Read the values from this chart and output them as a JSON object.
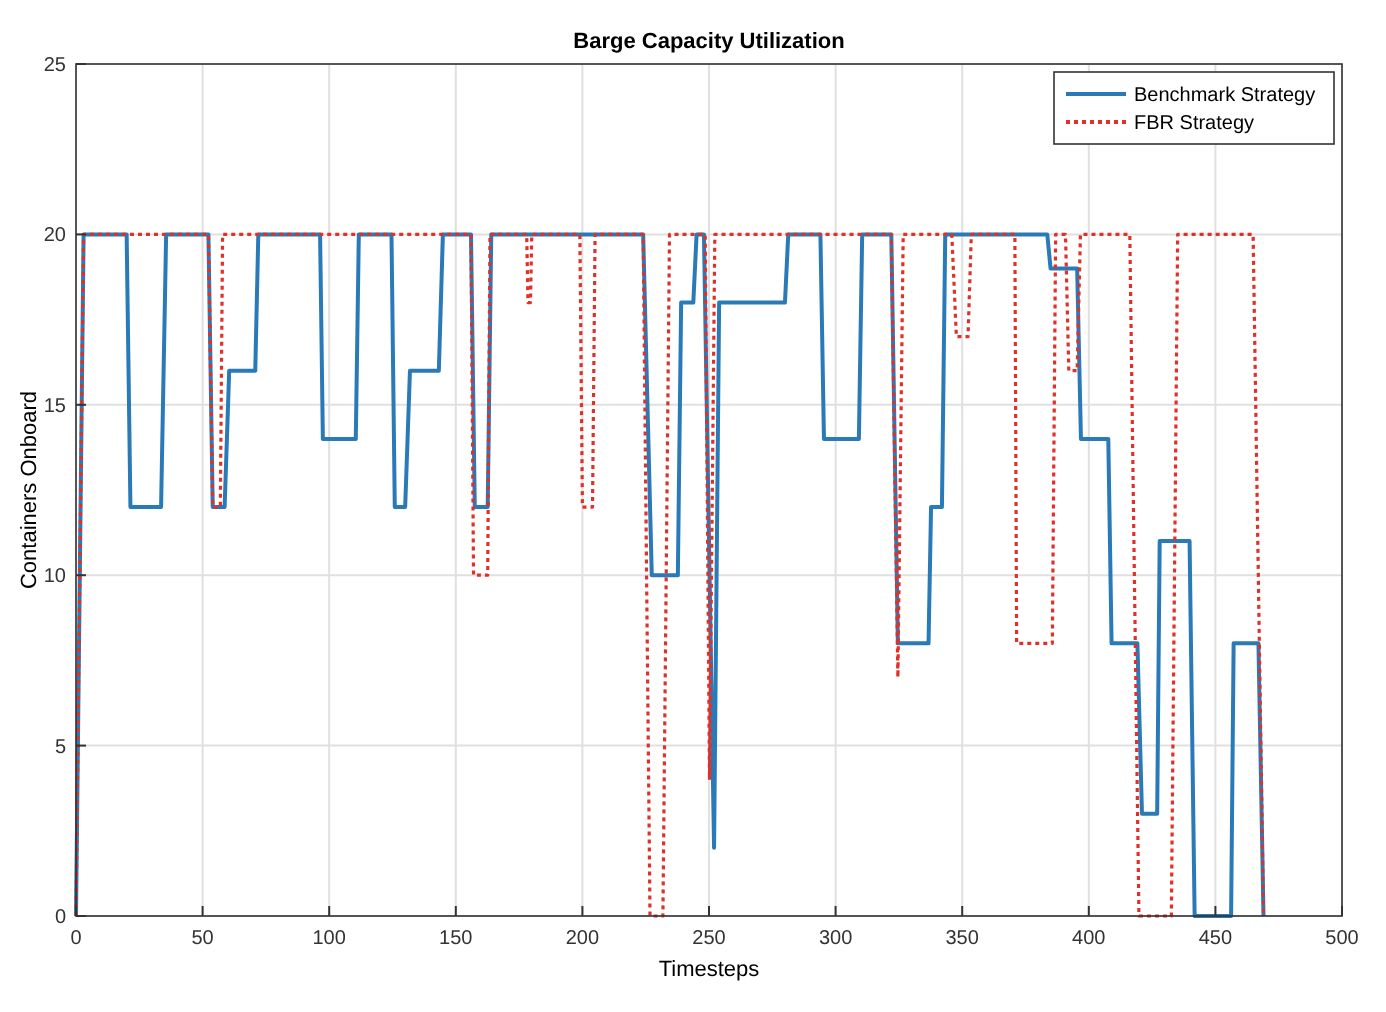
{
  "chart_data": {
    "type": "line",
    "title": "Barge Capacity Utilization",
    "xlabel": "Timesteps",
    "ylabel": "Containers Onboard",
    "xlim": [
      0,
      500
    ],
    "xticks": [
      0,
      50,
      100,
      150,
      200,
      250,
      300,
      350,
      400,
      450,
      500
    ],
    "ylim": [
      0,
      25
    ],
    "yticks": [
      0,
      5,
      10,
      15,
      20,
      25
    ],
    "grid": true,
    "legend": "top right",
    "marker": "none",
    "series": [
      {
        "name": "Benchmark Strategy",
        "color": "#2a7ab8",
        "line_style": "solid",
        "x": [
          0,
          3,
          20,
          21.5,
          33.6,
          35.6,
          52.3,
          54,
          58.7,
          60.5,
          70.8,
          72,
          96.4,
          97.5,
          110.5,
          111.7,
          124.6,
          125.9,
          130,
          131.9,
          143.3,
          144.9,
          156,
          157.5,
          162.6,
          164,
          224,
          227.4,
          237.7,
          239,
          243.8,
          245.1,
          248,
          252,
          254,
          280,
          281.3,
          294,
          295.4,
          309.2,
          310.5,
          322,
          324.6,
          336.7,
          337.7,
          342,
          343.3,
          383.6,
          384.9,
          395.4,
          396.9,
          407.7,
          409,
          419.2,
          421,
          427,
          428,
          439.8,
          441.8,
          456.2,
          457.2,
          467,
          469
        ],
        "values": [
          0,
          20,
          20,
          12,
          12,
          20,
          20,
          12,
          12,
          16,
          16,
          20,
          20,
          14,
          14,
          20,
          20,
          12,
          12,
          16,
          16,
          20,
          20,
          12,
          12,
          20,
          20,
          10,
          10,
          18,
          18,
          20,
          20,
          2,
          18,
          18,
          20,
          20,
          14,
          14,
          20,
          20,
          8,
          8,
          12,
          12,
          20,
          20,
          19,
          19,
          14,
          14,
          8,
          8,
          3,
          3,
          11,
          11,
          0,
          0,
          8,
          8,
          0
        ]
      },
      {
        "name": "FBR Strategy",
        "color": "#e0302a",
        "line_style": "dotted",
        "x": [
          0,
          3,
          52.3,
          54,
          57,
          57.9,
          156,
          157,
          162.6,
          163.5,
          178,
          178.5,
          179.5,
          180,
          199,
          200,
          204,
          205,
          224,
          226.7,
          231.8,
          234.4,
          248.5,
          250.2,
          252.3,
          322,
          324.6,
          326.7,
          345.9,
          347.7,
          352.3,
          353.6,
          370.8,
          371.5,
          385.6,
          386.9,
          390.8,
          392.1,
          395.4,
          396.7,
          416.2,
          419.8,
          432.6,
          435.1,
          464.9,
          469
        ],
        "values": [
          0,
          20,
          20,
          12,
          12,
          20,
          20,
          10,
          10,
          20,
          20,
          18,
          18,
          20,
          20,
          12,
          12,
          20,
          20,
          0,
          0,
          20,
          20,
          4,
          20,
          20,
          7,
          20,
          20,
          17,
          17,
          20,
          20,
          8,
          8,
          20,
          20,
          16,
          16,
          20,
          20,
          0,
          0,
          20,
          20,
          0
        ]
      }
    ]
  }
}
